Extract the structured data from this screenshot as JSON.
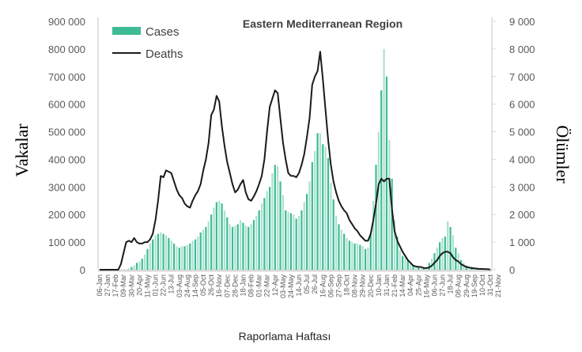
{
  "chart_data": {
    "type": "bar+line",
    "title": "Eastern Mediterranean Region",
    "xlabel": "Raporlama Haftası",
    "ylabel_left": "Vakalar",
    "ylabel_right": "Ölümler",
    "ylim_left": [
      0,
      900000
    ],
    "ylim_right": [
      0,
      9000
    ],
    "left_ticks": [
      "0",
      "100 000",
      "200 000",
      "300 000",
      "400 000",
      "500 000",
      "600 000",
      "700 000",
      "800 000",
      "900 000"
    ],
    "right_ticks": [
      "0",
      "1 000",
      "2 000",
      "3 000",
      "4 000",
      "5 000",
      "6 000",
      "7 000",
      "8 000",
      "9 000"
    ],
    "legend": {
      "position": "top-left",
      "entries": [
        "Cases",
        "Deaths"
      ]
    },
    "colors": {
      "cases_dark": "#3dbb94",
      "cases_light": "#a9e2cf",
      "deaths": "#1a1a1a",
      "axis": "#d9d9d9"
    },
    "x_tick_labels": [
      "06-Jan",
      "27-Jan",
      "17-Feb",
      "09-Mar",
      "30-Mar",
      "20-Apr",
      "11-May",
      "01-Jun",
      "22-Jun",
      "13-Jul",
      "03-Aug",
      "24-Aug",
      "14-Sep",
      "05-Oct",
      "26-Oct",
      "16-Nov",
      "07-Dec",
      "28-Dec",
      "18-Jan",
      "08-Feb",
      "01-Mar",
      "22-Mar",
      "12-Apr",
      "03-May",
      "24-May",
      "14-Jun",
      "05-Jul",
      "26-Jul",
      "16-Aug",
      "06-Sep",
      "27-Sep",
      "18-Oct",
      "08-Nov",
      "29-Nov",
      "20-Dec",
      "10-Jan",
      "31-Jan",
      "21-Feb",
      "14-Mar",
      "04-Apr",
      "25-Apr",
      "16-May",
      "06-Jun",
      "27-Jun",
      "18-Jul",
      "08-Aug",
      "29-Aug",
      "19-Sep",
      "10-Oct",
      "31-Oct",
      "21-Nov"
    ],
    "x_tick_every_weeks": 3,
    "series": [
      {
        "name": "Cases",
        "type": "bar",
        "axis": "left",
        "values": [
          0,
          0,
          0,
          0,
          0,
          0,
          0,
          0,
          0,
          0,
          0,
          5000,
          10000,
          15000,
          25000,
          30000,
          40000,
          55000,
          75000,
          95000,
          110000,
          125000,
          130000,
          135000,
          130000,
          125000,
          115000,
          105000,
          95000,
          85000,
          80000,
          85000,
          85000,
          90000,
          95000,
          105000,
          110000,
          120000,
          135000,
          145000,
          155000,
          175000,
          200000,
          225000,
          245000,
          250000,
          240000,
          215000,
          190000,
          165000,
          155000,
          160000,
          165000,
          180000,
          170000,
          160000,
          155000,
          165000,
          180000,
          195000,
          215000,
          240000,
          260000,
          285000,
          300000,
          350000,
          380000,
          375000,
          320000,
          270000,
          215000,
          210000,
          205000,
          200000,
          185000,
          195000,
          215000,
          245000,
          275000,
          320000,
          390000,
          430000,
          495000,
          495000,
          455000,
          445000,
          405000,
          315000,
          255000,
          195000,
          165000,
          145000,
          130000,
          115000,
          105000,
          100000,
          95000,
          95000,
          90000,
          85000,
          75000,
          80000,
          130000,
          250000,
          380000,
          500000,
          650000,
          800000,
          700000,
          470000,
          330000,
          180000,
          120000,
          70000,
          50000,
          45000,
          35000,
          25000,
          15000,
          10000,
          8000,
          5000,
          5000,
          10000,
          25000,
          40000,
          60000,
          80000,
          100000,
          115000,
          120000,
          175000,
          155000,
          125000,
          80000,
          60000,
          35000,
          25000,
          15000,
          12000,
          10000,
          8000,
          6000,
          5000,
          4000,
          3000,
          2000,
          2000
        ]
      },
      {
        "name": "Deaths",
        "type": "line",
        "axis": "right",
        "values": [
          0,
          0,
          0,
          0,
          0,
          0,
          0,
          0,
          200,
          600,
          1000,
          1050,
          1000,
          1150,
          1000,
          950,
          950,
          1000,
          1000,
          1100,
          1300,
          1800,
          2500,
          3400,
          3350,
          3600,
          3550,
          3500,
          3200,
          2900,
          2700,
          2600,
          2400,
          2300,
          2250,
          2500,
          2700,
          2850,
          3100,
          3600,
          4000,
          4600,
          5600,
          5800,
          6300,
          6100,
          5200,
          4500,
          3900,
          3500,
          3100,
          2800,
          2900,
          3100,
          3250,
          2800,
          2550,
          2500,
          2650,
          2850,
          3100,
          3400,
          4000,
          5000,
          5900,
          6200,
          6500,
          6400,
          5500,
          4600,
          4000,
          3500,
          3400,
          3400,
          3350,
          3500,
          3800,
          4200,
          4800,
          5500,
          6700,
          7000,
          7200,
          7900,
          6900,
          5800,
          4700,
          3800,
          3200,
          2800,
          2500,
          2300,
          2150,
          2050,
          1800,
          1650,
          1500,
          1400,
          1250,
          1150,
          1050,
          1050,
          1300,
          1800,
          2400,
          3100,
          3300,
          3200,
          3300,
          3300,
          2200,
          1400,
          1050,
          850,
          650,
          500,
          350,
          250,
          150,
          120,
          100,
          100,
          60,
          60,
          80,
          150,
          250,
          350,
          500,
          600,
          650,
          650,
          600,
          450,
          350,
          300,
          200,
          150,
          100,
          80,
          60,
          50,
          40,
          30,
          30,
          20,
          20,
          10
        ]
      }
    ]
  }
}
